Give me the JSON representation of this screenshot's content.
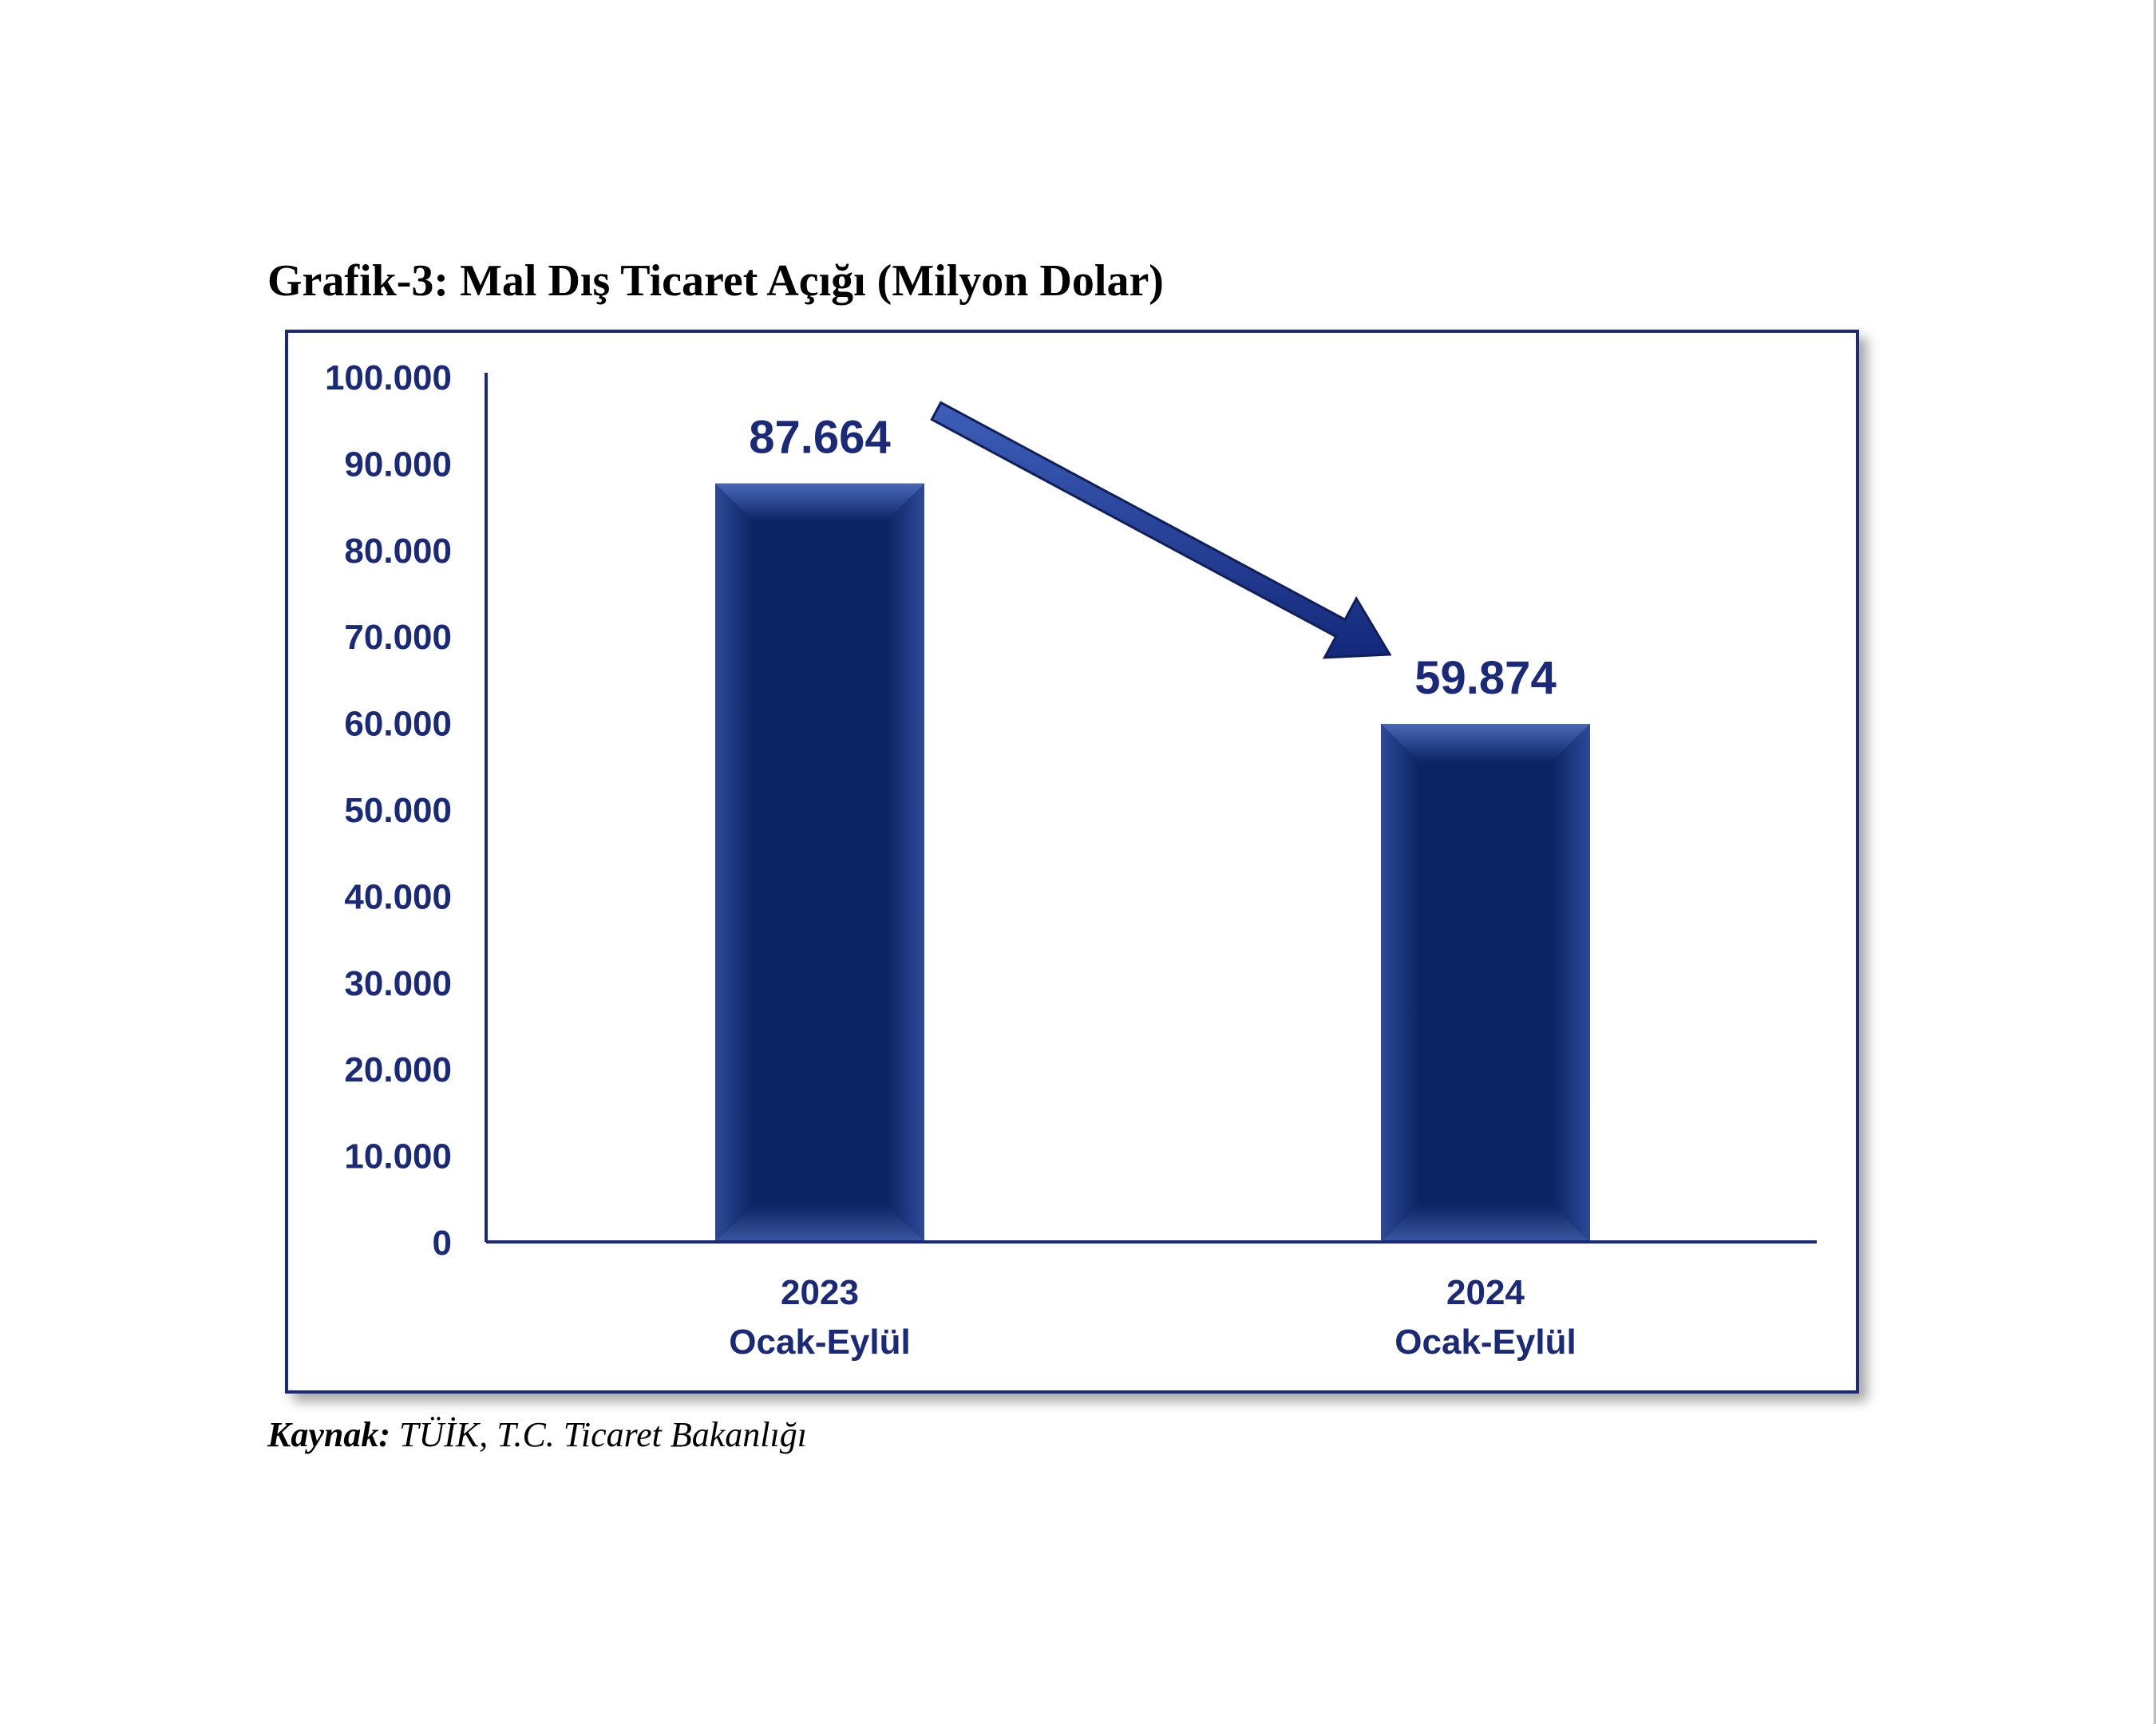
{
  "title": "Grafik-3: Mal Dış Ticaret Açığı (Milyon Dolar)",
  "source": {
    "label": "Kaynak:",
    "text": " TÜİK, T.C. Ticaret Bakanlığı"
  },
  "colors": {
    "bar": "#0b2463",
    "bar_light": "#3a5aa8",
    "axis_text": "#1a2a78",
    "arrow": "#1f3a8a",
    "frame": "#1a2a78"
  },
  "chart_data": {
    "type": "bar",
    "categories": [
      [
        "2023",
        "Ocak-Eylül"
      ],
      [
        "2024",
        "Ocak-Eylül"
      ]
    ],
    "values": [
      87664,
      59874
    ],
    "value_labels": [
      "87.664",
      "59.874"
    ],
    "ylim": [
      0,
      100000
    ],
    "yticks": [
      0,
      10000,
      20000,
      30000,
      40000,
      50000,
      60000,
      70000,
      80000,
      90000,
      100000
    ],
    "ytick_labels": [
      "0",
      "10.000",
      "20.000",
      "30.000",
      "40.000",
      "50.000",
      "60.000",
      "70.000",
      "80.000",
      "90.000",
      "100.000"
    ],
    "grid": false,
    "legend": "none",
    "annotation": "downward-arrow"
  }
}
